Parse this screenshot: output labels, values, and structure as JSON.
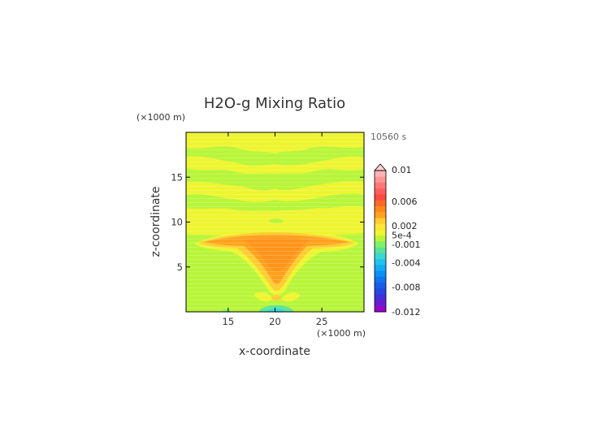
{
  "chart_data": {
    "type": "heatmap",
    "title": "H2O-g Mixing Ratio",
    "xlabel": "x-coordinate",
    "ylabel": "z-coordinate",
    "x_unit": "(×1000 m)",
    "y_unit": "(×1000 m)",
    "time_label": "10560 s",
    "xlim": [
      10.5,
      29.5
    ],
    "ylim": [
      0,
      20
    ],
    "x_ticks": [
      15,
      20,
      25
    ],
    "y_ticks": [
      5,
      10,
      15
    ],
    "colorbar": {
      "labels": [
        "0.01",
        "0.006",
        "0.002",
        "5e-4",
        "-0.001",
        "-0.004",
        "-0.008",
        "-0.012"
      ],
      "label_values": [
        0.01,
        0.006,
        0.002,
        0.0005,
        -0.001,
        -0.004,
        -0.008,
        -0.012
      ],
      "range": [
        -0.012,
        0.011
      ],
      "extend": "max",
      "colors": [
        "#9900cc",
        "#6a1bd0",
        "#4430d8",
        "#2746e0",
        "#1a5be8",
        "#0f74ee",
        "#0b8ff2",
        "#14aaf4",
        "#22c4ee",
        "#3ad8d0",
        "#5ae49a",
        "#7df36a",
        "#b8f53a",
        "#eef530",
        "#ffe63a",
        "#ffcc33",
        "#ffa11f",
        "#ff8a1a",
        "#ff6a2a",
        "#ff4a40",
        "#ff5d5d",
        "#ff7878",
        "#ff9696",
        "#ffb3b3"
      ],
      "extend_color": "#ffd2d2"
    },
    "field_levels": {
      "green": 0.0001,
      "yellow": 0.0006,
      "light_orange": 0.0016,
      "orange": 0.0024
    }
  }
}
